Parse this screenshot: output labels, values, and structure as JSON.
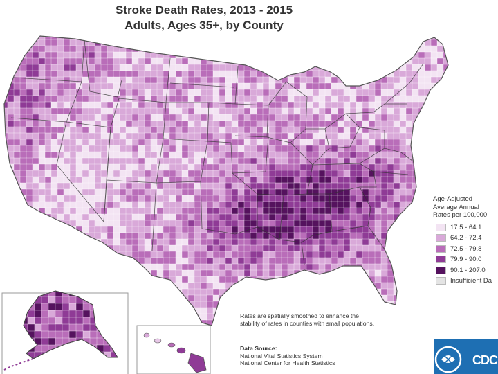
{
  "title": {
    "line1": "Stroke Death Rates, 2013 - 2015",
    "line2": "Adults, Ages 35+, by County"
  },
  "legend": {
    "title_lines": [
      "Age-Adjusted",
      "Average Annual",
      "Rates per 100,000"
    ],
    "classes": [
      {
        "label": "17.5 - 64.1",
        "color": "#f3e4f3"
      },
      {
        "label": "64.2 - 72.4",
        "color": "#d9a9d9"
      },
      {
        "label": "72.5 - 79.8",
        "color": "#b96db9"
      },
      {
        "label": "79.9 - 90.0",
        "color": "#8f3b96"
      },
      {
        "label": "90.1 - 207.0",
        "color": "#55125e"
      },
      {
        "label": "Insufficient Da",
        "color": "#e4e4e4"
      }
    ]
  },
  "note": "Rates are spatially smoothed to enhance the stability of rates in counties with small populations.",
  "source": {
    "heading": "Data Source:",
    "lines": [
      "National Vital Statistics System",
      "National Center for Health Statistics"
    ]
  },
  "logo": {
    "text": "CDC",
    "color": "#1e6fb3"
  }
}
